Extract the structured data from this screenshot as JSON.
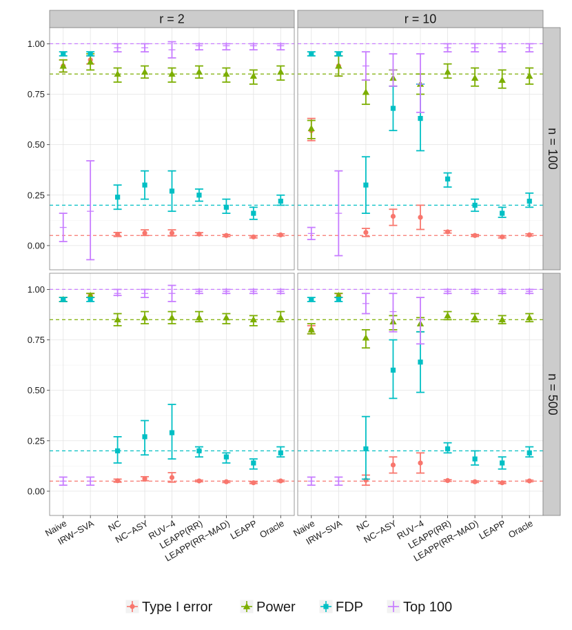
{
  "chart_data": {
    "type": "errorbar",
    "title": "",
    "xlabel": "",
    "ylabel": "",
    "ylim": [
      -0.12,
      1.08
    ],
    "yticks": [
      0.0,
      0.25,
      0.5,
      0.75,
      1.0
    ],
    "ytick_labels": [
      "0.00",
      "0.25",
      "0.50",
      "0.75",
      "1.00"
    ],
    "grid": true,
    "legend_position": "bottom",
    "categories": [
      "Naive",
      "IRW-SVA",
      "NC",
      "NC-ASY",
      "RUV-4",
      "LEAPP(RR)",
      "LEAPP(RR-MAD)",
      "LEAPP",
      "Oracle"
    ],
    "category_labels": [
      "Naive",
      "IRW−SVA",
      "NC",
      "NC−ASY",
      "RUV−4",
      "LEAPP(RR)",
      "LEAPP(RR−MAD)",
      "LEAPP",
      "Oracle"
    ],
    "col_facets": [
      "r = 2",
      "r = 10"
    ],
    "row_facets": [
      "n = 100",
      "n = 500"
    ],
    "series_info": [
      {
        "key": "type1",
        "name": "Type I error",
        "color": "#F8766D",
        "shape": "circle"
      },
      {
        "key": "power",
        "name": "Power",
        "color": "#7CAE00",
        "shape": "triangle"
      },
      {
        "key": "fdp",
        "name": "FDP",
        "color": "#00BFC4",
        "shape": "square"
      },
      {
        "key": "top100",
        "name": "Top 100",
        "color": "#C77CFF",
        "shape": "plus"
      }
    ],
    "reference_lines": [
      {
        "series": "type1",
        "y": 0.05
      },
      {
        "series": "power",
        "y": 0.85
      },
      {
        "series": "fdp",
        "y": 0.2
      },
      {
        "series": "top100",
        "y": 1.0
      }
    ],
    "panels": [
      {
        "row": 0,
        "col": 0,
        "series": {
          "type1": [
            [
              0.89,
              0.86,
              0.92
            ],
            [
              0.92,
              0.9,
              0.94
            ],
            [
              0.055,
              0.045,
              0.065
            ],
            [
              0.062,
              0.05,
              0.078
            ],
            [
              0.062,
              0.048,
              0.078
            ],
            [
              0.057,
              0.05,
              0.064
            ],
            [
              0.05,
              0.045,
              0.055
            ],
            [
              0.043,
              0.038,
              0.048
            ],
            [
              0.053,
              0.048,
              0.058
            ]
          ],
          "power": [
            [
              0.89,
              0.86,
              0.92
            ],
            [
              0.91,
              0.87,
              0.95
            ],
            [
              0.85,
              0.81,
              0.88
            ],
            [
              0.86,
              0.83,
              0.89
            ],
            [
              0.85,
              0.81,
              0.88
            ],
            [
              0.86,
              0.83,
              0.89
            ],
            [
              0.85,
              0.81,
              0.88
            ],
            [
              0.84,
              0.8,
              0.87
            ],
            [
              0.86,
              0.82,
              0.89
            ]
          ],
          "fdp": [
            [
              0.95,
              0.94,
              0.96
            ],
            [
              0.95,
              0.94,
              0.96
            ],
            [
              0.24,
              0.18,
              0.3
            ],
            [
              0.3,
              0.23,
              0.37
            ],
            [
              0.27,
              0.17,
              0.37
            ],
            [
              0.25,
              0.22,
              0.28
            ],
            [
              0.19,
              0.16,
              0.23
            ],
            [
              0.16,
              0.13,
              0.19
            ],
            [
              0.22,
              0.2,
              0.25
            ]
          ],
          "top100": [
            [
              0.09,
              0.02,
              0.16
            ],
            [
              0.17,
              -0.07,
              0.42
            ],
            [
              0.98,
              0.96,
              1.0
            ],
            [
              0.98,
              0.96,
              1.0
            ],
            [
              0.97,
              0.93,
              1.01
            ],
            [
              0.99,
              0.97,
              1.0
            ],
            [
              0.99,
              0.97,
              1.0
            ],
            [
              0.99,
              0.97,
              1.0
            ],
            [
              0.99,
              0.97,
              1.0
            ]
          ]
        }
      },
      {
        "row": 0,
        "col": 1,
        "series": {
          "type1": [
            [
              0.57,
              0.52,
              0.63
            ],
            [
              0.89,
              0.84,
              0.94
            ],
            [
              0.065,
              0.045,
              0.085
            ],
            [
              0.145,
              0.1,
              0.18
            ],
            [
              0.14,
              0.08,
              0.2
            ],
            [
              0.068,
              0.062,
              0.074
            ],
            [
              0.05,
              0.045,
              0.055
            ],
            [
              0.043,
              0.038,
              0.048
            ],
            [
              0.053,
              0.048,
              0.058
            ]
          ],
          "power": [
            [
              0.58,
              0.53,
              0.62
            ],
            [
              0.89,
              0.84,
              0.94
            ],
            [
              0.76,
              0.7,
              0.82
            ],
            [
              0.83,
              0.79,
              0.87
            ],
            [
              0.8,
              0.75,
              0.85
            ],
            [
              0.86,
              0.83,
              0.9
            ],
            [
              0.83,
              0.79,
              0.88
            ],
            [
              0.82,
              0.78,
              0.87
            ],
            [
              0.84,
              0.8,
              0.88
            ]
          ],
          "fdp": [
            [
              0.95,
              0.94,
              0.96
            ],
            [
              0.95,
              0.94,
              0.96
            ],
            [
              0.3,
              0.16,
              0.44
            ],
            [
              0.68,
              0.57,
              0.79
            ],
            [
              0.63,
              0.47,
              0.8
            ],
            [
              0.33,
              0.29,
              0.36
            ],
            [
              0.2,
              0.17,
              0.23
            ],
            [
              0.16,
              0.14,
              0.19
            ],
            [
              0.22,
              0.19,
              0.26
            ]
          ],
          "top100": [
            [
              0.06,
              0.03,
              0.09
            ],
            [
              0.16,
              -0.05,
              0.37
            ],
            [
              0.89,
              0.82,
              0.96
            ],
            [
              0.87,
              0.79,
              0.95
            ],
            [
              0.8,
              0.66,
              0.95
            ],
            [
              0.98,
              0.96,
              1.0
            ],
            [
              0.98,
              0.96,
              1.0
            ],
            [
              0.98,
              0.96,
              1.0
            ],
            [
              0.98,
              0.96,
              1.0
            ]
          ]
        }
      },
      {
        "row": 1,
        "col": 0,
        "series": {
          "type1": [
            [
              0.95,
              0.94,
              0.96
            ],
            [
              0.97,
              0.96,
              0.98
            ],
            [
              0.052,
              0.045,
              0.06
            ],
            [
              0.062,
              0.052,
              0.072
            ],
            [
              0.068,
              0.045,
              0.092
            ],
            [
              0.051,
              0.047,
              0.055
            ],
            [
              0.047,
              0.043,
              0.051
            ],
            [
              0.042,
              0.038,
              0.046
            ],
            [
              0.051,
              0.047,
              0.055
            ]
          ],
          "power": [
            [
              0.95,
              0.94,
              0.96
            ],
            [
              0.97,
              0.96,
              0.98
            ],
            [
              0.85,
              0.82,
              0.88
            ],
            [
              0.86,
              0.83,
              0.89
            ],
            [
              0.86,
              0.83,
              0.89
            ],
            [
              0.86,
              0.84,
              0.89
            ],
            [
              0.86,
              0.83,
              0.88
            ],
            [
              0.85,
              0.82,
              0.87
            ],
            [
              0.86,
              0.84,
              0.89
            ]
          ],
          "fdp": [
            [
              0.95,
              0.94,
              0.96
            ],
            [
              0.95,
              0.94,
              0.96
            ],
            [
              0.2,
              0.14,
              0.27
            ],
            [
              0.27,
              0.18,
              0.35
            ],
            [
              0.29,
              0.16,
              0.43
            ],
            [
              0.2,
              0.17,
              0.22
            ],
            [
              0.17,
              0.14,
              0.19
            ],
            [
              0.14,
              0.11,
              0.16
            ],
            [
              0.19,
              0.17,
              0.22
            ]
          ],
          "top100": [
            [
              0.05,
              0.03,
              0.07
            ],
            [
              0.05,
              0.03,
              0.07
            ],
            [
              0.98,
              0.97,
              1.0
            ],
            [
              0.98,
              0.96,
              1.0
            ],
            [
              0.98,
              0.94,
              1.02
            ],
            [
              0.99,
              0.98,
              1.0
            ],
            [
              0.99,
              0.98,
              1.0
            ],
            [
              0.99,
              0.98,
              1.0
            ],
            [
              0.99,
              0.98,
              1.0
            ]
          ]
        }
      },
      {
        "row": 1,
        "col": 1,
        "series": {
          "type1": [
            [
              0.8,
              0.78,
              0.82
            ],
            [
              0.97,
              0.96,
              0.98
            ],
            [
              0.055,
              0.03,
              0.08
            ],
            [
              0.13,
              0.09,
              0.17
            ],
            [
              0.14,
              0.09,
              0.19
            ],
            [
              0.053,
              0.049,
              0.057
            ],
            [
              0.047,
              0.043,
              0.051
            ],
            [
              0.042,
              0.038,
              0.046
            ],
            [
              0.051,
              0.047,
              0.055
            ]
          ],
          "power": [
            [
              0.8,
              0.78,
              0.83
            ],
            [
              0.97,
              0.96,
              0.98
            ],
            [
              0.76,
              0.71,
              0.8
            ],
            [
              0.84,
              0.8,
              0.87
            ],
            [
              0.83,
              0.79,
              0.86
            ],
            [
              0.87,
              0.85,
              0.89
            ],
            [
              0.86,
              0.84,
              0.88
            ],
            [
              0.85,
              0.83,
              0.87
            ],
            [
              0.86,
              0.84,
              0.88
            ]
          ],
          "fdp": [
            [
              0.95,
              0.94,
              0.96
            ],
            [
              0.95,
              0.94,
              0.96
            ],
            [
              0.21,
              0.06,
              0.37
            ],
            [
              0.6,
              0.46,
              0.75
            ],
            [
              0.64,
              0.49,
              0.79
            ],
            [
              0.21,
              0.19,
              0.24
            ],
            [
              0.16,
              0.13,
              0.2
            ],
            [
              0.14,
              0.11,
              0.17
            ],
            [
              0.19,
              0.17,
              0.22
            ]
          ],
          "top100": [
            [
              0.05,
              0.03,
              0.07
            ],
            [
              0.05,
              0.03,
              0.07
            ],
            [
              0.93,
              0.88,
              0.98
            ],
            [
              0.89,
              0.79,
              0.98
            ],
            [
              0.85,
              0.73,
              0.96
            ],
            [
              0.99,
              0.98,
              1.0
            ],
            [
              0.99,
              0.98,
              1.0
            ],
            [
              0.99,
              0.98,
              1.0
            ],
            [
              0.99,
              0.98,
              1.0
            ]
          ]
        }
      }
    ]
  }
}
